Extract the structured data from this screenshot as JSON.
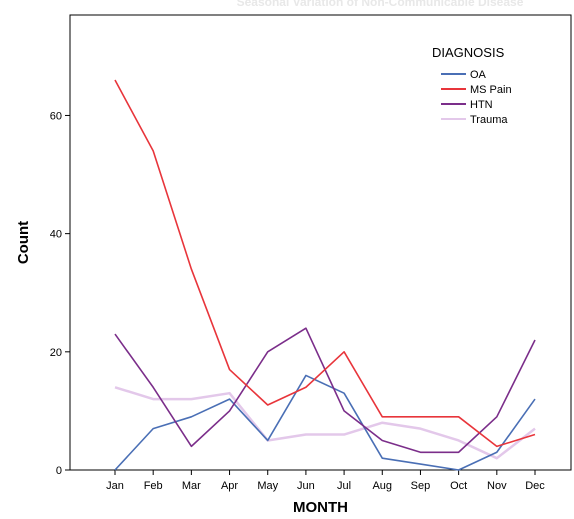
{
  "chart_data": {
    "type": "line",
    "title": "Seasonal Variation of Non-Communicable Disease",
    "xlabel": "MONTH",
    "ylabel": "Count",
    "categories": [
      "Jan",
      "Feb",
      "Mar",
      "Apr",
      "May",
      "Jun",
      "Jul",
      "Aug",
      "Sep",
      "Oct",
      "Nov",
      "Dec"
    ],
    "ylim": [
      0,
      77
    ],
    "yticks": [
      0,
      20,
      40,
      60
    ],
    "grid": false,
    "legend": {
      "title": "DIAGNOSIS",
      "placement": "top-right"
    },
    "series": [
      {
        "name": "OA",
        "color": "#4a6fb5",
        "values": [
          0,
          7,
          9,
          12,
          5,
          16,
          13,
          2,
          1,
          0,
          3,
          12
        ]
      },
      {
        "name": "MS Pain",
        "color": "#e8353b",
        "values": [
          66,
          54,
          34,
          17,
          11,
          14,
          20,
          9,
          9,
          9,
          4,
          6
        ]
      },
      {
        "name": "HTN",
        "color": "#7b2e8a",
        "values": [
          23,
          14,
          4,
          10,
          20,
          24,
          10,
          5,
          3,
          3,
          9,
          22
        ]
      },
      {
        "name": "Trauma",
        "color": "#e3c8ea",
        "values": [
          14,
          12,
          12,
          13,
          5,
          6,
          6,
          8,
          7,
          5,
          2,
          7
        ]
      }
    ]
  }
}
